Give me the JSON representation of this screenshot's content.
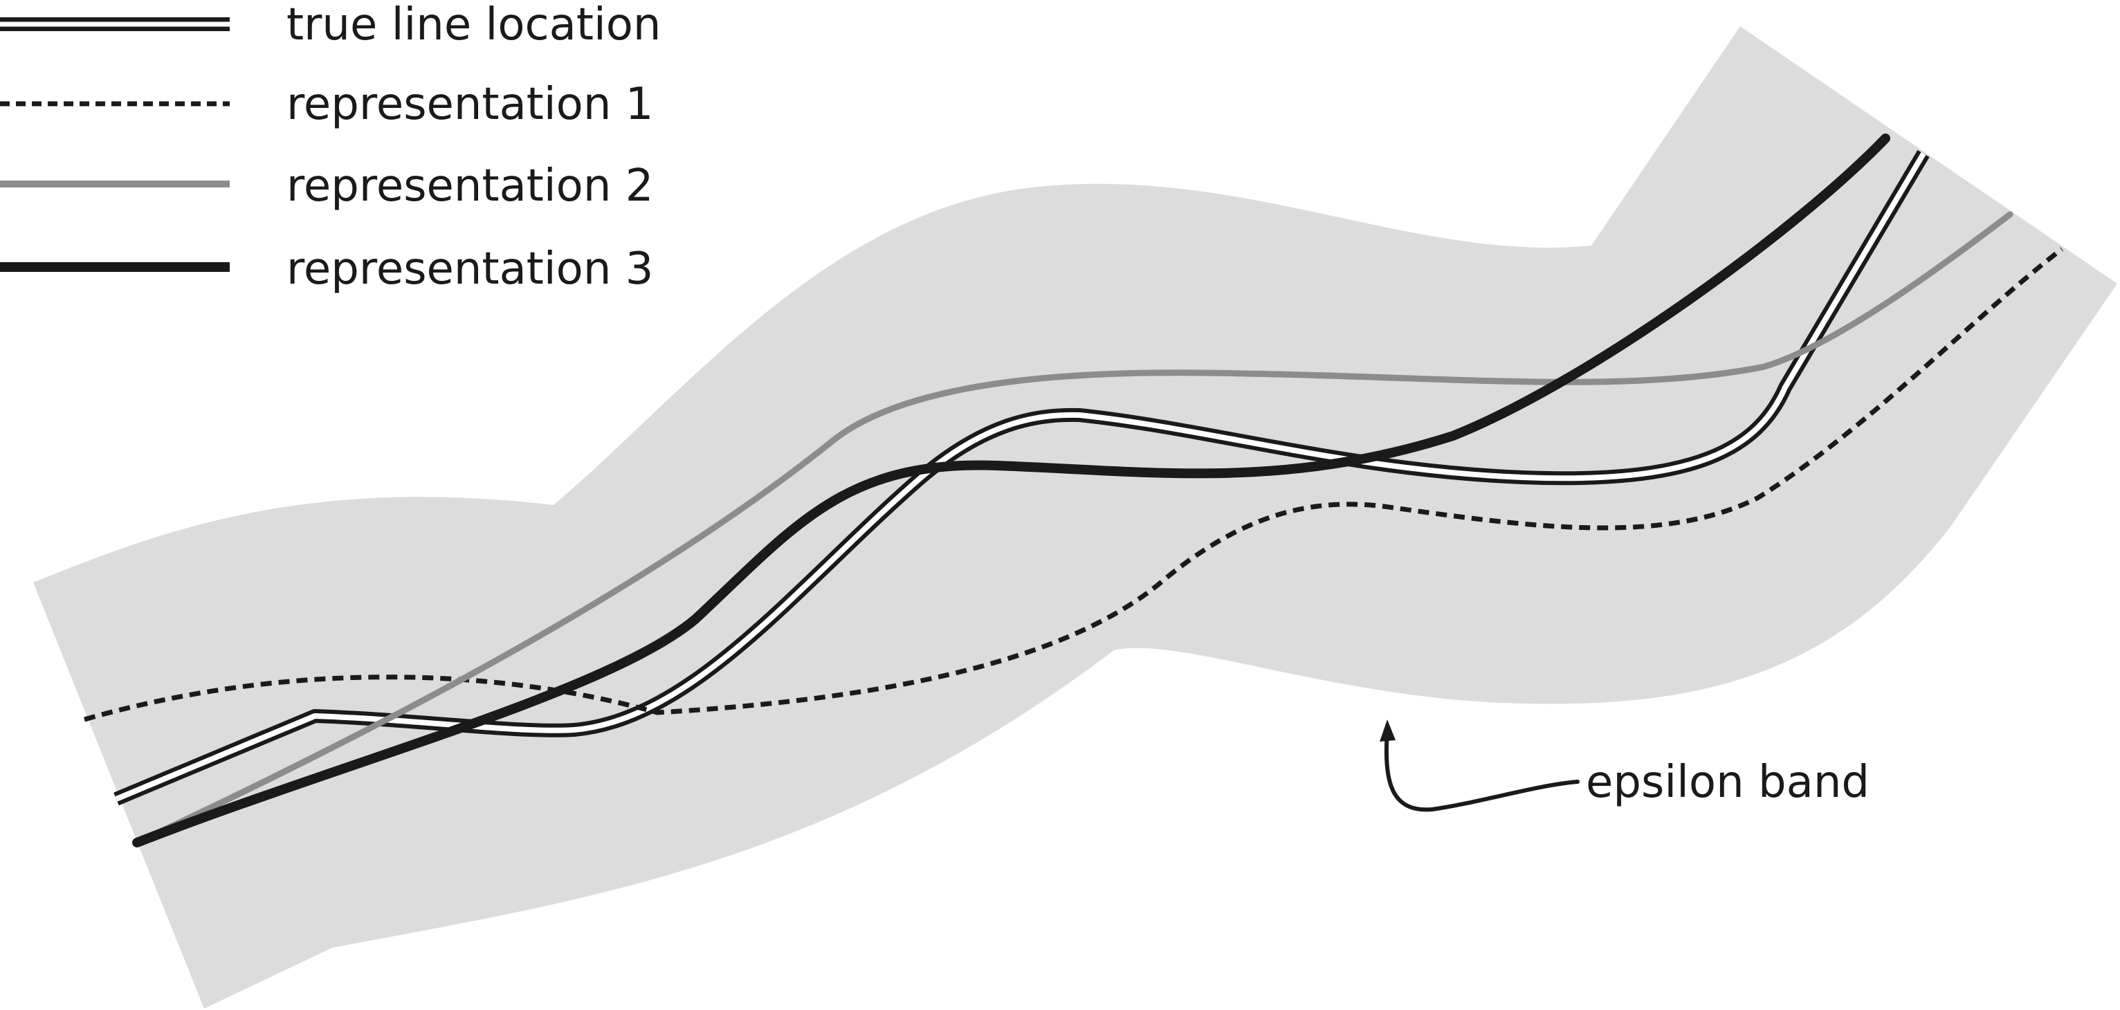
{
  "legend": {
    "items": [
      {
        "label": "true line location",
        "style": "double-line",
        "color": "#1a1a1a"
      },
      {
        "label": "representation 1",
        "style": "dashed",
        "color": "#1a1a1a"
      },
      {
        "label": "representation 2",
        "style": "solid",
        "color": "#8c8c8c"
      },
      {
        "label": "representation 3",
        "style": "solid-thick",
        "color": "#1a1a1a"
      }
    ]
  },
  "annotations": {
    "band_label": "epsilon band"
  },
  "colors": {
    "band_fill": "#dcdcdc",
    "ink": "#1a1a1a",
    "gray_line": "#8c8c8c",
    "background": "#ffffff"
  }
}
